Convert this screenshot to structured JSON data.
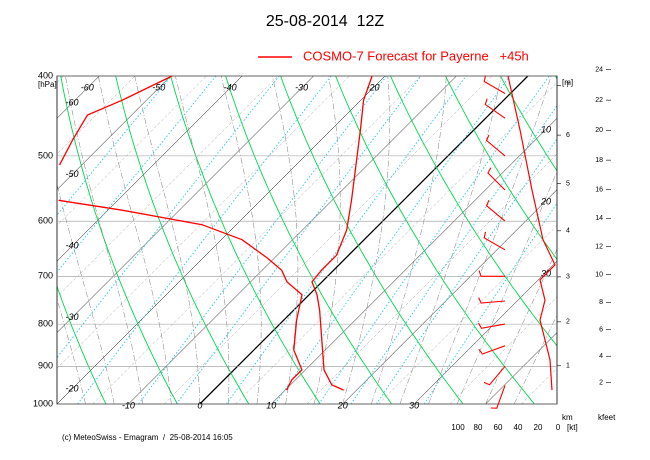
{
  "chart_data": {
    "type": "emagram",
    "title": "25-08-2014  12Z",
    "legend_label": "COSMO-7 Forecast for Payerne   +45h",
    "footer": "(c) MeteoSwiss - Emagram  /  25-08-2014 16:05",
    "y_unit": "[hPa]",
    "yscale": "log",
    "ylim": [
      400,
      1000
    ],
    "yticks": [
      400,
      500,
      600,
      700,
      800,
      900,
      1000
    ],
    "xlim": [
      -20,
      50
    ],
    "xticks": [
      -10,
      0,
      10,
      20,
      30
    ],
    "top_isotherm_labels": [
      -60,
      -50,
      -40,
      -30,
      -20
    ],
    "left_isotherm_labels": [
      -60,
      -50,
      -40,
      -30,
      -20
    ],
    "right_labels": [
      10,
      20,
      30
    ],
    "grid": true,
    "series": [
      {
        "color": "#ff0000",
        "pressure": [
          400,
          428,
          465,
          506,
          566,
          615,
          660,
          688,
          711,
          737,
          769,
          836,
          909,
          948,
          962
        ],
        "values": [
          -21.8,
          -19.6,
          -15.9,
          -12.2,
          -7.3,
          -3.8,
          -1.7,
          -1.7,
          -1.4,
          1.1,
          3.6,
          8.1,
          12.6,
          15.8,
          18.2
        ]
      },
      {
        "color": "#ff0000",
        "pressure": [
          400,
          428,
          446,
          478,
          513,
          null,
          566,
          582,
          606,
          632,
          665,
          688,
          711,
          737,
          791,
          860,
          909,
          935,
          962
        ],
        "values": [
          -49.8,
          -53.4,
          -56.2,
          -54.8,
          -53.1,
          null,
          -48.3,
          -38.0,
          -24.8,
          -17.1,
          -11.0,
          -7.3,
          -4.9,
          -1.0,
          1.8,
          5.6,
          9.5,
          9.5,
          10.2
        ]
      }
    ],
    "wind": {
      "color": "#ff0000",
      "pressure": [
        400,
        465,
        550,
        632,
        678,
        707,
        748,
        791,
        836,
        884,
        962
      ],
      "values": [
        50,
        38,
        26,
        15,
        3,
        18,
        13,
        18,
        13,
        8,
        6
      ]
    },
    "wind_xlim": [
      100,
      0
    ],
    "wind_xticks": [
      100,
      80,
      60,
      40,
      20,
      0
    ],
    "wind_unit": "[kt]",
    "wind_barbs": {
      "color": "#ff0000",
      "pressure": [
        420,
        450,
        500,
        550,
        600,
        650,
        700,
        750,
        800,
        850,
        900,
        950
      ],
      "direction": [
        300,
        305,
        310,
        315,
        310,
        300,
        270,
        265,
        260,
        250,
        220,
        200
      ]
    },
    "km_label": "km",
    "km_unit": "[m]",
    "km_ticks": [
      1,
      2,
      3,
      4,
      5,
      6,
      7
    ],
    "kft_label": "kfeet",
    "kft_ticks": [
      2,
      4,
      6,
      8,
      10,
      12,
      14,
      16,
      18,
      20,
      22,
      24
    ]
  }
}
